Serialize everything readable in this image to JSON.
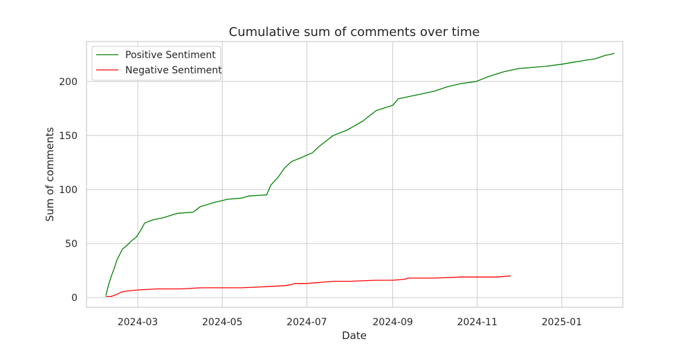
{
  "chart_data": {
    "type": "line",
    "title": "Cumulative sum of comments over time",
    "xlabel": "Date",
    "ylabel": "Sum of comments",
    "xlim": [
      "2024-01-24",
      "2025-02-14"
    ],
    "ylim": [
      -9,
      237
    ],
    "x_ticks": [
      "2024-03-01",
      "2024-05-01",
      "2024-07-01",
      "2024-09-01",
      "2024-11-01",
      "2025-01-01"
    ],
    "x_tick_labels": [
      "2024-03",
      "2024-05",
      "2024-07",
      "2024-09",
      "2024-11",
      "2025-01"
    ],
    "y_ticks": [
      0,
      50,
      100,
      150,
      200
    ],
    "grid": true,
    "legend": "top-left",
    "series": [
      {
        "name": "Positive Sentiment",
        "color": "#008000",
        "x": [
          "2024-02-07",
          "2024-02-09",
          "2024-02-11",
          "2024-02-13",
          "2024-02-15",
          "2024-02-17",
          "2024-02-19",
          "2024-02-22",
          "2024-02-25",
          "2024-02-29",
          "2024-03-03",
          "2024-03-06",
          "2024-03-08",
          "2024-03-10",
          "2024-03-12",
          "2024-03-20",
          "2024-03-27",
          "2024-03-30",
          "2024-04-10",
          "2024-04-15",
          "2024-04-25",
          "2024-05-05",
          "2024-05-15",
          "2024-05-20",
          "2024-06-02",
          "2024-06-05",
          "2024-06-10",
          "2024-06-15",
          "2024-06-20",
          "2024-06-26",
          "2024-07-05",
          "2024-07-10",
          "2024-07-15",
          "2024-07-20",
          "2024-07-30",
          "2024-08-10",
          "2024-08-20",
          "2024-09-01",
          "2024-09-05",
          "2024-09-20",
          "2024-10-01",
          "2024-10-10",
          "2024-10-20",
          "2024-10-31",
          "2024-11-10",
          "2024-11-20",
          "2024-12-01",
          "2024-12-20",
          "2025-01-01",
          "2025-01-10",
          "2025-01-15",
          "2025-01-20",
          "2025-01-25",
          "2025-02-01",
          "2025-02-08"
        ],
        "values": [
          2,
          12,
          20,
          27,
          35,
          40,
          45,
          48,
          52,
          56,
          62,
          69,
          70,
          71,
          72,
          74,
          77,
          78,
          79,
          84,
          88,
          91,
          92,
          94,
          95,
          104,
          111,
          120,
          126,
          129,
          134,
          140,
          145,
          150,
          155,
          163,
          173,
          178,
          184,
          188,
          191,
          195,
          198,
          200,
          205,
          209,
          212,
          214,
          216,
          218,
          219,
          220,
          221,
          224,
          226
        ]
      },
      {
        "name": "Negative Sentiment",
        "color": "#ff0000",
        "x": [
          "2024-02-07",
          "2024-02-11",
          "2024-02-15",
          "2024-02-18",
          "2024-02-22",
          "2024-03-01",
          "2024-03-15",
          "2024-04-01",
          "2024-04-15",
          "2024-05-01",
          "2024-05-15",
          "2024-06-01",
          "2024-06-15",
          "2024-06-20",
          "2024-06-22",
          "2024-07-01",
          "2024-07-20",
          "2024-08-01",
          "2024-08-20",
          "2024-09-01",
          "2024-09-10",
          "2024-09-12",
          "2024-10-01",
          "2024-10-20",
          "2024-11-01",
          "2024-11-15",
          "2024-11-25"
        ],
        "values": [
          1,
          1,
          3,
          5,
          6,
          7,
          8,
          8,
          9,
          9,
          9,
          10,
          11,
          12,
          13,
          13,
          15,
          15,
          16,
          16,
          17,
          18,
          18,
          19,
          19,
          19,
          20
        ]
      }
    ]
  }
}
